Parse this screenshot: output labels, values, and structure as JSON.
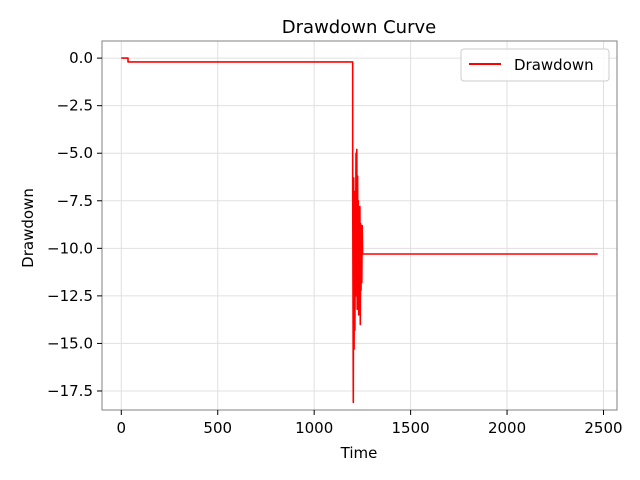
{
  "chart_data": {
    "type": "line",
    "title": "Drawdown Curve",
    "xlabel": "Time",
    "ylabel": "Drawdown",
    "xlim": [
      -100,
      2570
    ],
    "ylim": [
      -18.5,
      0.9
    ],
    "xticks": [
      0,
      500,
      1000,
      1500,
      2000,
      2500
    ],
    "xtick_labels": [
      "0",
      "500",
      "1000",
      "1500",
      "2000",
      "2500"
    ],
    "yticks": [
      0,
      -2.5,
      -5,
      -7.5,
      -10,
      -12.5,
      -15,
      -17.5
    ],
    "ytick_labels": [
      "0.0",
      "−2.5",
      "−5.0",
      "−7.5",
      "−10.0",
      "−12.5",
      "−15.0",
      "−17.5"
    ],
    "grid": true,
    "legend_position": "top-right",
    "series": [
      {
        "name": "Drawdown",
        "color": "#ff0000",
        "x": [
          0,
          35,
          35,
          1200,
          1200,
          1203,
          1205,
          1207,
          1209,
          1211,
          1213,
          1215,
          1217,
          1219,
          1221,
          1223,
          1225,
          1227,
          1229,
          1231,
          1233,
          1235,
          1237,
          1239,
          1241,
          1243,
          1245,
          1247,
          1249,
          1251,
          1253,
          1255,
          1300,
          1800,
          2470
        ],
        "y": [
          0,
          0,
          -0.2,
          -0.2,
          -6.5,
          -18.1,
          -6.3,
          -15.3,
          -8.0,
          -14.3,
          -7.0,
          -10.3,
          -5.0,
          -12.5,
          -4.8,
          -13.2,
          -6.2,
          -11.0,
          -7.5,
          -13.5,
          -8.0,
          -12.0,
          -7.8,
          -14.0,
          -8.7,
          -12.2,
          -9.5,
          -11.8,
          -8.8,
          -10.3,
          -10.3,
          -10.3,
          -10.3,
          -10.3,
          -10.3
        ]
      }
    ]
  }
}
